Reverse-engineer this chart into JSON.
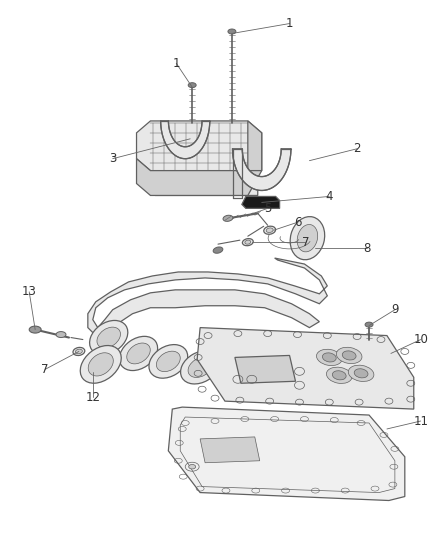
{
  "bg_color": "#ffffff",
  "line_color": "#606060",
  "fill_light": "#e8e8e8",
  "fill_mid": "#d0d0d0",
  "fill_dark": "#b0b0b0",
  "fill_black": "#1a1a1a",
  "annotation_color": "#333333",
  "font_size": 8.5,
  "figsize": [
    4.38,
    5.33
  ],
  "dpi": 100
}
